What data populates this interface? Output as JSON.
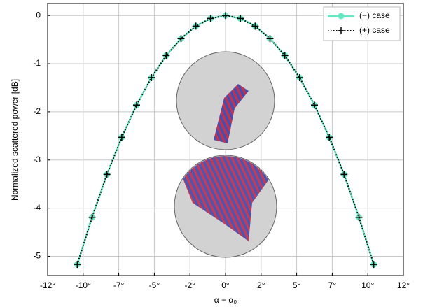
{
  "chart_data": {
    "type": "line",
    "x_label": "α − α₀",
    "y_label": "Normalized scattered power [dB]",
    "x": [
      -10,
      -9,
      -8,
      -7,
      -6,
      -5,
      -4,
      -3,
      -2,
      -1,
      0,
      1,
      2,
      3,
      4,
      5,
      6,
      7,
      8,
      9,
      10
    ],
    "series": [
      {
        "name": "(−) case",
        "color": "#66e8c4",
        "values": [
          -5.17,
          -4.19,
          -3.3,
          -2.53,
          -1.86,
          -1.29,
          -0.83,
          -0.48,
          -0.22,
          -0.06,
          0,
          -0.06,
          -0.22,
          -0.48,
          -0.83,
          -1.29,
          -1.86,
          -2.53,
          -3.3,
          -4.19,
          -5.17
        ]
      },
      {
        "name": "(+) case",
        "color": "#000000",
        "values": [
          -5.17,
          -4.19,
          -3.3,
          -2.53,
          -1.86,
          -1.29,
          -0.83,
          -0.48,
          -0.22,
          -0.06,
          0,
          -0.06,
          -0.22,
          -0.48,
          -0.83,
          -1.29,
          -1.86,
          -2.53,
          -3.3,
          -4.19,
          -5.17
        ]
      }
    ],
    "xlim": [
      -12,
      12
    ],
    "xticks": [
      {
        "value": -12,
        "label": "-12°"
      },
      {
        "value": -9.6,
        "label": "-10°"
      },
      {
        "value": -7.2,
        "label": "-7°"
      },
      {
        "value": -4.8,
        "label": "-5°"
      },
      {
        "value": -2.4,
        "label": "-2°"
      },
      {
        "value": 0,
        "label": "0°"
      },
      {
        "value": 2.4,
        "label": "2°"
      },
      {
        "value": 4.8,
        "label": "5°"
      },
      {
        "value": 7.2,
        "label": "7°"
      },
      {
        "value": 9.6,
        "label": "10°"
      },
      {
        "value": 12,
        "label": "12°"
      }
    ],
    "ylim": [
      -5.4,
      0.25
    ],
    "yticks": [
      -5,
      -4,
      -3,
      -2,
      -1,
      0
    ],
    "grid": true,
    "legend": "upper-right"
  }
}
